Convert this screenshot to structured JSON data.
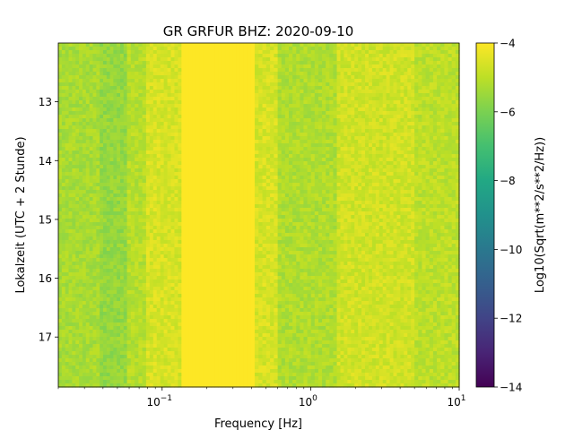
{
  "chart_data": {
    "type": "heatmap",
    "title": "GR GRFUR  BHZ: 2020-09-10",
    "xlabel": "Frequency [Hz]",
    "ylabel": "Lokalzeit (UTC + 2 Stunde)",
    "colorbar_label": "Log10(Sqrt(m**2/s**2/Hz))",
    "x_scale": "log",
    "xlim": [
      0.02,
      10
    ],
    "ylim": [
      17.85,
      12.0
    ],
    "x_ticks": [
      {
        "value": 0.1,
        "base": "10",
        "exp": "−1"
      },
      {
        "value": 1,
        "base": "10",
        "exp": "0"
      },
      {
        "value": 10,
        "base": "10",
        "exp": "1"
      }
    ],
    "y_ticks": [
      {
        "value": 13,
        "label": "13"
      },
      {
        "value": 14,
        "label": "14"
      },
      {
        "value": 15,
        "label": "15"
      },
      {
        "value": 16,
        "label": "16"
      },
      {
        "value": 17,
        "label": "17"
      }
    ],
    "colorbar": {
      "colormap": "viridis",
      "range": [
        -14,
        -4
      ],
      "ticks": [
        {
          "value": -4,
          "label": "−4"
        },
        {
          "value": -6,
          "label": "−6"
        },
        {
          "value": -8,
          "label": "−8"
        },
        {
          "value": -10,
          "label": "−10"
        },
        {
          "value": -12,
          "label": "−12"
        },
        {
          "value": -14,
          "label": "−14"
        }
      ]
    },
    "frequency_bands": [
      {
        "f_min": 0.02,
        "f_max": 0.038,
        "value": -5.3
      },
      {
        "f_min": 0.038,
        "f_max": 0.058,
        "value": -5.6
      },
      {
        "f_min": 0.058,
        "f_max": 0.078,
        "value": -5.1
      },
      {
        "f_min": 0.078,
        "f_max": 0.135,
        "value": -4.6
      },
      {
        "f_min": 0.135,
        "f_max": 0.42,
        "value": -4.0
      },
      {
        "f_min": 0.42,
        "f_max": 0.6,
        "value": -4.6
      },
      {
        "f_min": 0.6,
        "f_max": 1.5,
        "value": -5.2
      },
      {
        "f_min": 1.5,
        "f_max": 5.0,
        "value": -4.7
      },
      {
        "f_min": 5.0,
        "f_max": 10.0,
        "value": -5.0
      }
    ]
  }
}
